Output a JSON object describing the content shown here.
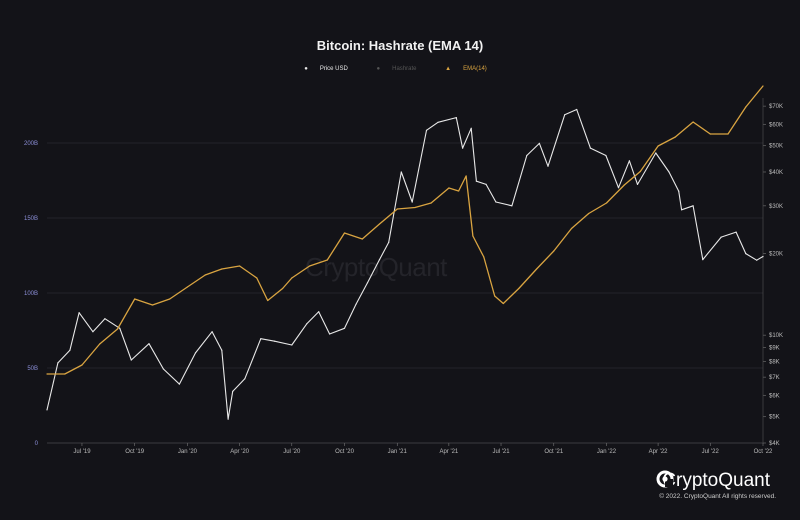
{
  "chart_data": {
    "type": "line",
    "title": "Bitcoin: Hashrate (EMA 14)",
    "legend": [
      "Price USD",
      "Hashrate",
      "EMA(14)"
    ],
    "x_ticks": [
      "Jul '19",
      "Oct '19",
      "Jan '20",
      "Apr '20",
      "Jul '20",
      "Oct '20",
      "Jan '21",
      "Apr '21",
      "Jul '21",
      "Oct '21",
      "Jan '22",
      "Apr '22",
      "Jul '22",
      "Oct '22"
    ],
    "x_range": [
      "2019-05-01",
      "2022-10-01"
    ],
    "y_left": {
      "ticks": [
        "0",
        "50B",
        "100B",
        "150B",
        "200B"
      ],
      "values": [
        0,
        50,
        100,
        150,
        200
      ],
      "range": [
        0,
        230
      ]
    },
    "y_right": {
      "scale": "log",
      "ticks": [
        "$4K",
        "$5K",
        "$6K",
        "$7K",
        "$8K",
        "$9K",
        "$10K",
        "$20K",
        "$30K",
        "$40K",
        "$50K",
        "$60K",
        "$70K"
      ],
      "values": [
        4000,
        5000,
        6000,
        7000,
        8000,
        9000,
        10000,
        20000,
        30000,
        40000,
        50000,
        60000,
        70000
      ],
      "range": [
        4000,
        75000
      ]
    },
    "series": [
      {
        "name": "Price USD",
        "axis": "right",
        "color": "#e8e8e8",
        "x": [
          "2019-05-01",
          "2019-05-20",
          "2019-06-10",
          "2019-06-26",
          "2019-07-20",
          "2019-08-10",
          "2019-09-05",
          "2019-09-25",
          "2019-10-26",
          "2019-11-20",
          "2019-12-18",
          "2020-01-15",
          "2020-02-13",
          "2020-03-01",
          "2020-03-12",
          "2020-03-20",
          "2020-04-10",
          "2020-05-08",
          "2020-06-01",
          "2020-07-01",
          "2020-07-27",
          "2020-08-17",
          "2020-09-05",
          "2020-10-01",
          "2020-10-21",
          "2020-11-10",
          "2020-12-01",
          "2020-12-17",
          "2021-01-08",
          "2021-01-27",
          "2021-02-21",
          "2021-03-13",
          "2021-04-14",
          "2021-04-25",
          "2021-05-10",
          "2021-05-19",
          "2021-06-05",
          "2021-06-22",
          "2021-07-20",
          "2021-08-15",
          "2021-09-06",
          "2021-09-21",
          "2021-10-20",
          "2021-11-10",
          "2021-12-04",
          "2021-12-31",
          "2022-01-22",
          "2022-02-10",
          "2022-02-24",
          "2022-03-28",
          "2022-04-20",
          "2022-05-07",
          "2022-05-12",
          "2022-06-01",
          "2022-06-18",
          "2022-07-20",
          "2022-08-15",
          "2022-09-01",
          "2022-09-20",
          "2022-10-01"
        ],
        "y": [
          5300,
          7900,
          8800,
          12100,
          10300,
          11500,
          10600,
          8100,
          9300,
          7500,
          6600,
          8600,
          10300,
          8800,
          4900,
          6200,
          6900,
          9700,
          9500,
          9200,
          11000,
          12200,
          10100,
          10600,
          13000,
          15600,
          19000,
          22000,
          40000,
          31000,
          57000,
          61000,
          63500,
          49000,
          58000,
          37000,
          36000,
          31000,
          30000,
          46000,
          51000,
          42000,
          65000,
          68000,
          49000,
          46000,
          35000,
          44000,
          36000,
          47000,
          40000,
          34000,
          29000,
          30000,
          19000,
          23000,
          24000,
          20000,
          18900,
          19500
        ]
      },
      {
        "name": "EMA(14)",
        "axis": "left",
        "color": "#d9a441",
        "x": [
          "2019-05-01",
          "2019-06-01",
          "2019-07-01",
          "2019-08-01",
          "2019-09-01",
          "2019-10-01",
          "2019-11-01",
          "2019-12-01",
          "2020-01-01",
          "2020-02-01",
          "2020-03-01",
          "2020-04-01",
          "2020-05-01",
          "2020-05-20",
          "2020-06-15",
          "2020-07-01",
          "2020-08-01",
          "2020-09-01",
          "2020-10-01",
          "2020-11-01",
          "2020-12-01",
          "2021-01-01",
          "2021-02-01",
          "2021-03-01",
          "2021-04-01",
          "2021-04-18",
          "2021-05-01",
          "2021-05-13",
          "2021-06-01",
          "2021-06-20",
          "2021-07-05",
          "2021-08-01",
          "2021-09-01",
          "2021-10-01",
          "2021-11-01",
          "2021-12-01",
          "2022-01-01",
          "2022-02-01",
          "2022-03-01",
          "2022-04-01",
          "2022-05-01",
          "2022-06-01",
          "2022-07-01",
          "2022-08-01",
          "2022-09-01",
          "2022-10-01"
        ],
        "y": [
          46,
          46,
          52,
          66,
          76,
          96,
          92,
          96,
          104,
          112,
          116,
          118,
          110,
          95,
          103,
          110,
          118,
          122,
          140,
          136,
          146,
          156,
          157,
          160,
          170,
          168,
          178,
          138,
          124,
          98,
          93,
          103,
          116,
          128,
          143,
          153,
          160,
          172,
          181,
          198,
          204,
          214,
          206,
          206,
          224,
          238
        ]
      }
    ]
  },
  "watermark": "CryptoQuant",
  "brand": "CryptoQuant",
  "copyright": "© 2022. CryptoQuant All rights reserved."
}
